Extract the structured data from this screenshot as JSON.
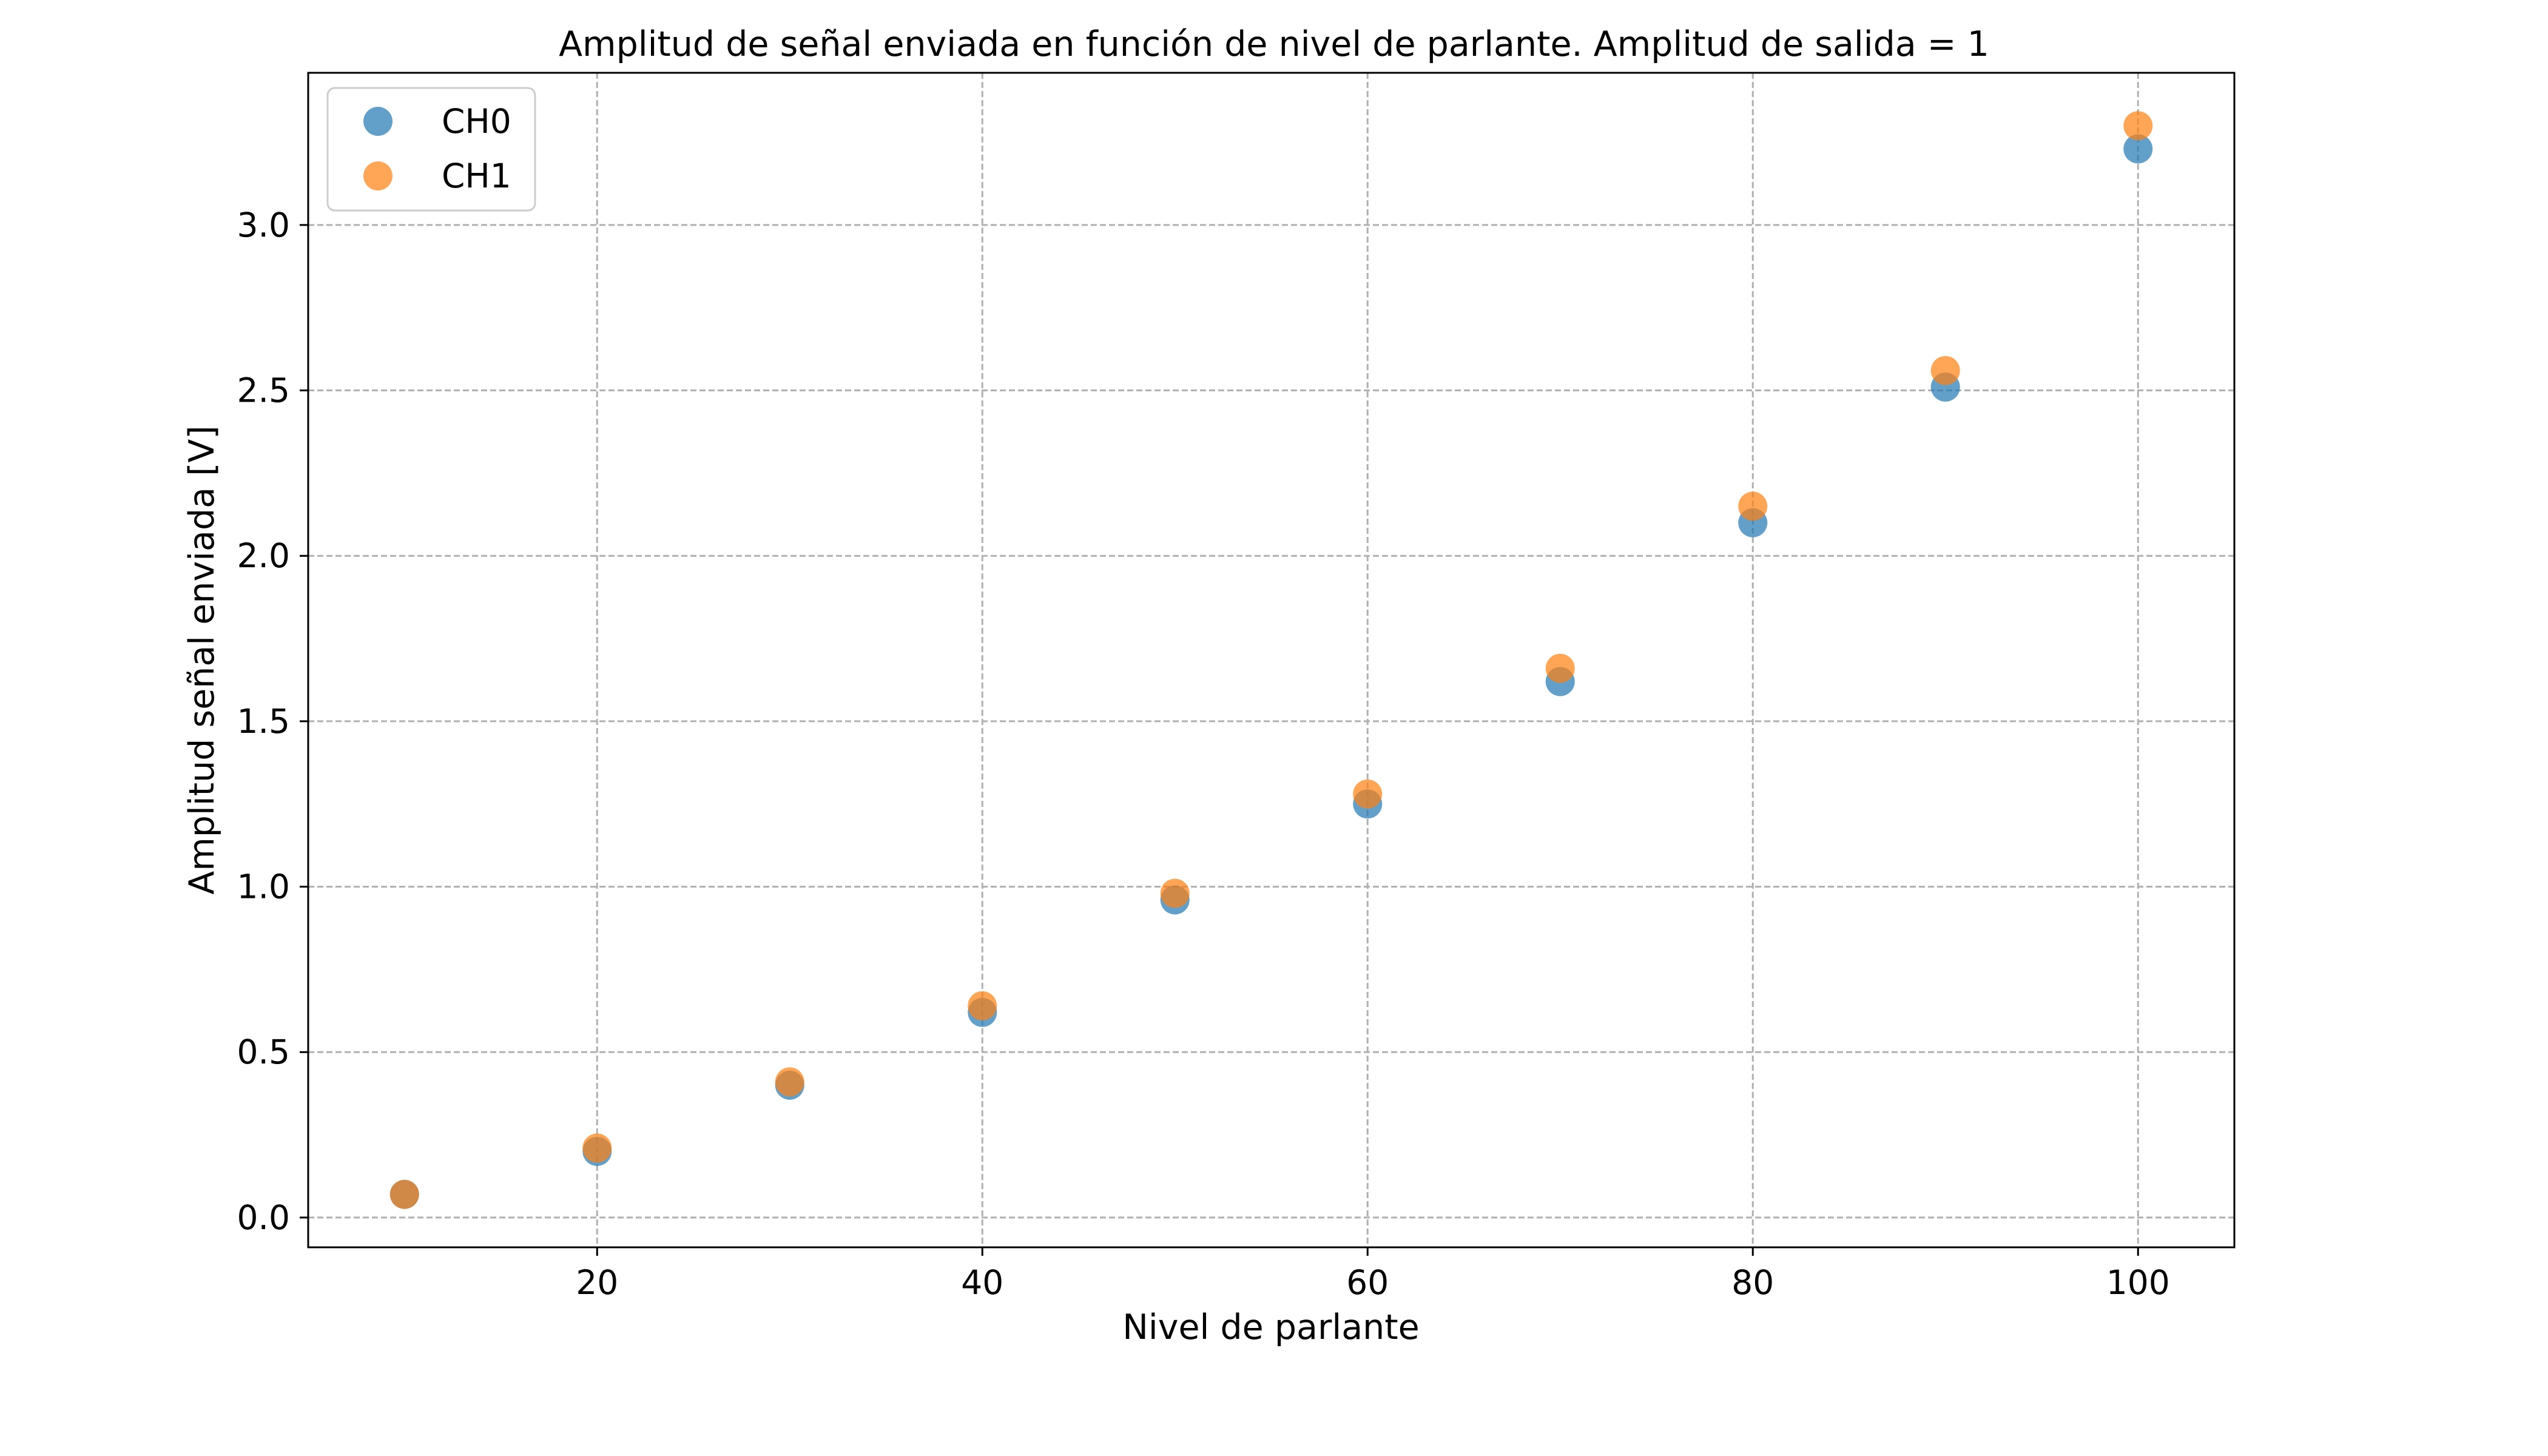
{
  "chart_data": {
    "type": "scatter",
    "title": "Amplitud de señal enviada en función de nivel de parlante. Amplitud de salida = 1",
    "xlabel": "Nivel de parlante",
    "ylabel": "Amplitud señal enviada [V]",
    "xlim": [
      5,
      105
    ],
    "ylim": [
      -0.09,
      3.46
    ],
    "xticks": [
      20,
      40,
      60,
      80,
      100
    ],
    "xtick_labels": [
      "20",
      "40",
      "60",
      "80",
      "100"
    ],
    "yticks": [
      0.0,
      0.5,
      1.0,
      1.5,
      2.0,
      2.5,
      3.0
    ],
    "ytick_labels": [
      "0.0",
      "0.5",
      "1.0",
      "1.5",
      "2.0",
      "2.5",
      "3.0"
    ],
    "grid": true,
    "legend_position": "top-left",
    "series": [
      {
        "name": "CH0",
        "color": "#1f77b4",
        "x": [
          10,
          20,
          30,
          40,
          50,
          60,
          70,
          80,
          90,
          100
        ],
        "y": [
          0.07,
          0.2,
          0.4,
          0.62,
          0.96,
          1.25,
          1.62,
          2.1,
          2.51,
          3.23
        ]
      },
      {
        "name": "CH1",
        "color": "#ff7f0e",
        "x": [
          10,
          20,
          30,
          40,
          50,
          60,
          70,
          80,
          90,
          100
        ],
        "y": [
          0.07,
          0.21,
          0.41,
          0.64,
          0.98,
          1.28,
          1.66,
          2.15,
          2.56,
          3.3
        ]
      }
    ]
  }
}
